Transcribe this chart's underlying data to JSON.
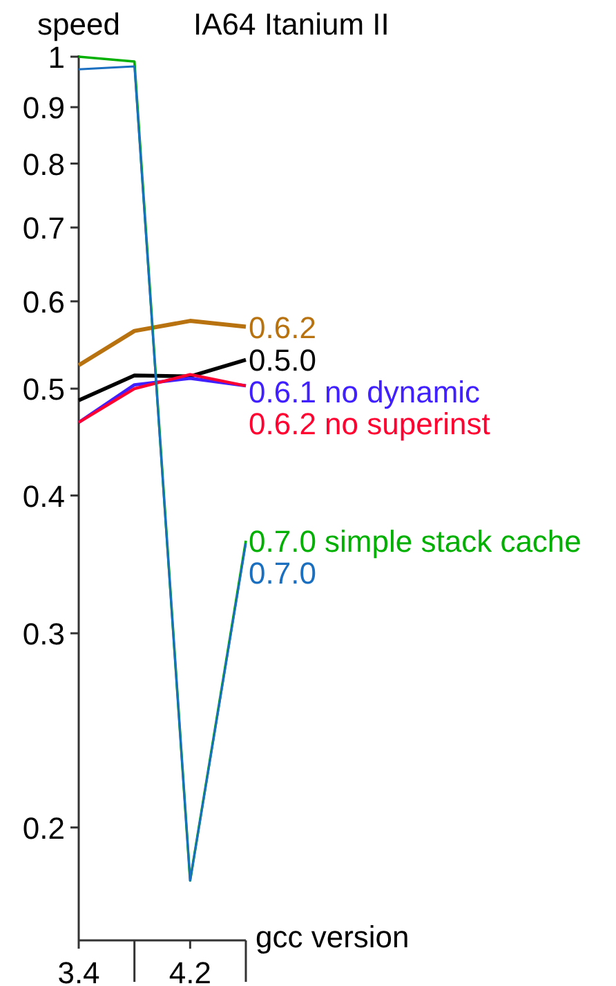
{
  "chart_data": {
    "type": "line",
    "title": "IA64 Itanium II",
    "xlabel": "gcc version",
    "ylabel": "speed",
    "categories": [
      "3.4",
      null,
      "4.2",
      null
    ],
    "log": "y",
    "ylim": [
      0.158,
      1
    ],
    "yticks": [
      0.2,
      0.3,
      0.4,
      0.5,
      0.6,
      0.7,
      0.8,
      0.9,
      1
    ],
    "grid": false,
    "legend": false,
    "marker": "none",
    "line_style": "solid",
    "series": [
      {
        "name": "0.6.2",
        "color": "#b8720f",
        "values": [
          0.525,
          0.564,
          0.576,
          0.569
        ]
      },
      {
        "name": "0.5.0",
        "color": "#000000",
        "values": [
          0.488,
          0.514,
          0.513,
          0.531
        ]
      },
      {
        "name": "0.6.1 no dynamic",
        "color": "#4020ff",
        "values": [
          0.466,
          0.504,
          0.511,
          0.503
        ]
      },
      {
        "name": "0.6.2 no superinst",
        "color": "#ff0030",
        "values": [
          0.466,
          0.5,
          0.515,
          0.503
        ]
      },
      {
        "name": "0.7.0 simple stack cache",
        "color": "#00b000",
        "values": [
          1.0,
          0.99,
          0.179,
          0.364
        ]
      },
      {
        "name": "0.7.0",
        "color": "#1a6fc0",
        "values": [
          0.974,
          0.98,
          0.179,
          0.362
        ]
      }
    ]
  }
}
